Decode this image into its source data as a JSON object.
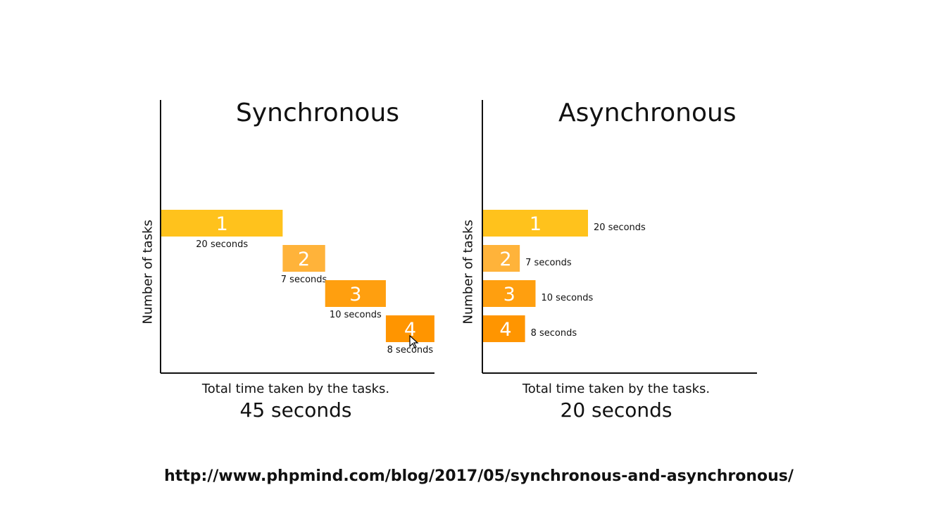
{
  "chart_data": [
    {
      "type": "bar",
      "title": "Synchronous",
      "ylabel": "Number of tasks",
      "xlabel": "Total time taken by the tasks.",
      "total": "45 seconds",
      "mode": "sequential",
      "xlim": [
        0,
        45
      ],
      "tasks": [
        {
          "label": "1",
          "start": 0,
          "duration": 20,
          "duration_label": "20 seconds",
          "color": "#FFC21C"
        },
        {
          "label": "2",
          "start": 20,
          "duration": 7,
          "duration_label": "7 seconds",
          "color": "#FFB33A"
        },
        {
          "label": "3",
          "start": 27,
          "duration": 10,
          "duration_label": "10 seconds",
          "color": "#FF9F0F"
        },
        {
          "label": "4",
          "start": 37,
          "duration": 8,
          "duration_label": "8 seconds",
          "color": "#FF9500"
        }
      ]
    },
    {
      "type": "bar",
      "title": "Asynchronous",
      "ylabel": "Number of tasks",
      "xlabel": "Total time taken by the tasks.",
      "total": "20 seconds",
      "mode": "parallel",
      "xlim": [
        0,
        45
      ],
      "tasks": [
        {
          "label": "1",
          "start": 0,
          "duration": 20,
          "duration_label": "20 seconds",
          "color": "#FFC21C"
        },
        {
          "label": "2",
          "start": 0,
          "duration": 7,
          "duration_label": "7 seconds",
          "color": "#FFB33A"
        },
        {
          "label": "3",
          "start": 0,
          "duration": 10,
          "duration_label": "10 seconds",
          "color": "#FF9F0F"
        },
        {
          "label": "4",
          "start": 0,
          "duration": 8,
          "duration_label": "8 seconds",
          "color": "#FF9500"
        }
      ]
    }
  ],
  "source_url": "http://www.phpmind.com/blog/2017/05/synchronous-and-asynchronous/"
}
